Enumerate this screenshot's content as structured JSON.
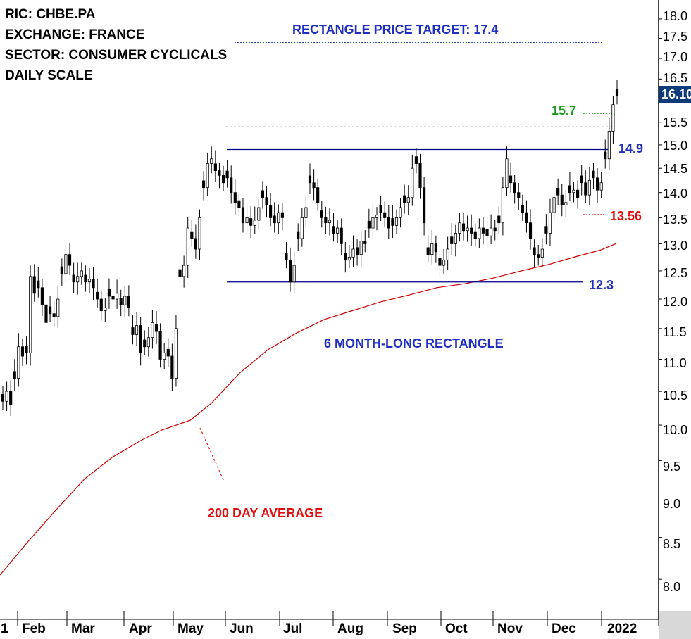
{
  "info": {
    "ric": "RIC: CHBE.PA",
    "exchange": "EXCHANGE: FRANCE",
    "sector": "SECTOR: CONSUMER CYCLICALS",
    "scale": "DAILY SCALE"
  },
  "annotations": {
    "price_target": "RECTANGLE PRICE TARGET: 17.4",
    "pattern": "6 MONTH-LONG RECTANGLE",
    "ma": "200 DAY  AVERAGE",
    "lvl_157": "15.7",
    "lvl_149": "14.9",
    "lvl_1356": "13.56",
    "lvl_123": "12.3",
    "last_price": "16.10"
  },
  "colors": {
    "candle": "#000000",
    "moving_average": "#cc0000",
    "boundary": "#00008b",
    "target": "#1f2fbf",
    "green": "#1a9a1a",
    "red": "#e01010",
    "badge": "#0f3b78"
  },
  "chart_data": {
    "type": "candlestick",
    "scale": "log",
    "ylim": [
      7.55,
      18.5
    ],
    "y_ticks": [
      "18.0",
      "17.5",
      "17.0",
      "16.5",
      "16.0",
      "15.5",
      "15.0",
      "14.5",
      "14.0",
      "13.5",
      "13.0",
      "12.5",
      "12.0",
      "11.5",
      "11.0",
      "10.5",
      "10.0",
      "9.5",
      "9.0",
      "8.5",
      "8.0"
    ],
    "x_ticks": [
      "1",
      "Feb",
      "Mar",
      "Apr",
      "May",
      "Jun",
      "Jul",
      "Aug",
      "Sep",
      "Oct",
      "Nov",
      "Dec",
      "2022"
    ],
    "price_closes": [
      10.35,
      10.5,
      10.3,
      10.7,
      11.2,
      11.05,
      11.1,
      12.4,
      12.1,
      12.2,
      11.9,
      11.6,
      11.75,
      11.7,
      12.0,
      12.45,
      12.8,
      12.6,
      12.3,
      12.4,
      12.5,
      12.3,
      12.35,
      12.2,
      12.0,
      11.8,
      11.85,
      12.05,
      12.0,
      12.1,
      11.9,
      12.05,
      11.85,
      11.4,
      11.55,
      11.1,
      11.2,
      11.35,
      11.6,
      11.45,
      11.0,
      11.1,
      11.05,
      10.7,
      11.5,
      12.4,
      12.6,
      13.3,
      13.1,
      12.9,
      13.5,
      14.1,
      14.6,
      14.7,
      14.45,
      14.35,
      14.2,
      14.3,
      14.0,
      13.8,
      13.7,
      13.4,
      13.5,
      13.35,
      13.45,
      13.7,
      13.9,
      13.75,
      13.5,
      13.4,
      13.6,
      13.5,
      12.7,
      12.3,
      12.6,
      13.1,
      13.5,
      13.7,
      14.2,
      14.1,
      13.8,
      13.5,
      13.4,
      13.45,
      13.2,
      13.3,
      13.0,
      12.7,
      12.75,
      12.9,
      12.8,
      13.05,
      13.0,
      13.3,
      13.5,
      13.55,
      13.6,
      13.5,
      13.3,
      13.35,
      13.5,
      13.7,
      13.8,
      13.9,
      14.5,
      14.6,
      14.1,
      13.4,
      12.8,
      13.0,
      12.85,
      12.6,
      12.7,
      12.9,
      13.0,
      13.2,
      13.4,
      13.25,
      13.3,
      13.2,
      13.1,
      13.3,
      13.2,
      13.15,
      13.3,
      13.25,
      13.4,
      14.1,
      14.7,
      14.2,
      14.0,
      13.9,
      13.6,
      13.4,
      13.1,
      12.8,
      12.75,
      12.9,
      13.2,
      13.6,
      13.9,
      13.95,
      13.75,
      13.8,
      14.0,
      14.05,
      13.9,
      14.2,
      13.95,
      14.25,
      14.3,
      14.05,
      14.2,
      14.7,
      15.3,
      15.9,
      16.1
    ]
  },
  "moving_average": {
    "name": "200 DAY  AVERAGE",
    "points": [
      [
        0,
        8.05
      ],
      [
        40,
        8.45
      ],
      [
        80,
        8.85
      ],
      [
        120,
        9.25
      ],
      [
        160,
        9.55
      ],
      [
        200,
        9.78
      ],
      [
        230,
        9.93
      ],
      [
        270,
        10.07
      ],
      [
        300,
        10.32
      ],
      [
        340,
        10.78
      ],
      [
        380,
        11.15
      ],
      [
        420,
        11.42
      ],
      [
        460,
        11.65
      ],
      [
        500,
        11.8
      ],
      [
        540,
        11.95
      ],
      [
        580,
        12.07
      ],
      [
        620,
        12.2
      ],
      [
        660,
        12.27
      ],
      [
        700,
        12.37
      ],
      [
        740,
        12.5
      ],
      [
        780,
        12.62
      ],
      [
        820,
        12.77
      ],
      [
        852,
        12.88
      ],
      [
        874,
        13.0
      ]
    ]
  },
  "levels": {
    "target": 17.4,
    "resistance": 14.9,
    "support": 12.3,
    "green_line": 15.7,
    "red_line": 13.56,
    "grey_line": 15.4
  }
}
